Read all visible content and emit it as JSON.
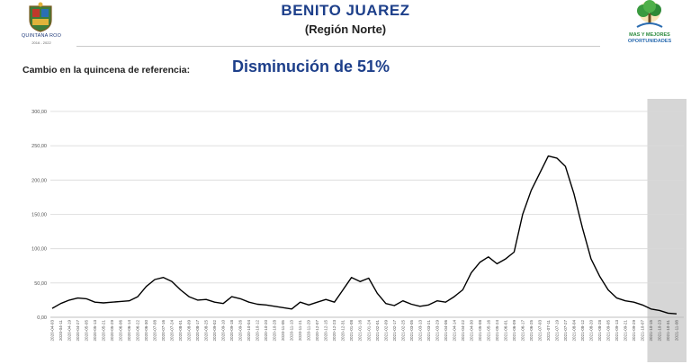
{
  "header": {
    "title": "BENITO JUAREZ",
    "subtitle": "(Región Norte)",
    "left_logo": {
      "name": "QUINTANA ROO",
      "years": "2016 - 2022"
    },
    "right_logo": {
      "line1": "MAS Y MEJORES",
      "line2": "OPORTUNIDADES"
    }
  },
  "change": {
    "label": "Cambio en la quincena de referencia:",
    "value": "Disminución de 51%"
  },
  "colors": {
    "title": "#1d3f8a",
    "line": "#000000",
    "grid": "#d9d9d9",
    "shade": "#c8c8c8"
  },
  "chart_data": {
    "type": "line",
    "title": "",
    "xlabel": "",
    "ylabel": "",
    "ylim": [
      0,
      300
    ],
    "yticks": [
      "0,00",
      "50,00",
      "100,00",
      "150,00",
      "200,00",
      "250,00",
      "300,00"
    ],
    "grid": true,
    "shaded_region": {
      "from": "2021-10-15",
      "to": "2021-11-08"
    },
    "x_tick_labels": [
      "2020-04-03",
      "2020-04-11",
      "2020-04-19",
      "2020-04-27",
      "2020-05-05",
      "2020-05-13",
      "2020-05-21",
      "2020-05-29",
      "2020-06-06",
      "2020-06-14",
      "2020-06-22",
      "2020-06-30",
      "2020-07-08",
      "2020-07-16",
      "2020-07-24",
      "2020-08-01",
      "2020-08-09",
      "2020-08-17",
      "2020-08-25",
      "2020-09-02",
      "2020-09-10",
      "2020-09-18",
      "2020-09-26",
      "2020-10-04",
      "2020-10-12",
      "2020-10-20",
      "2020-10-28",
      "2020-11-05",
      "2020-11-13",
      "2020-11-21",
      "2020-11-29",
      "2020-12-07",
      "2020-12-15",
      "2020-12-23",
      "2020-12-31",
      "2021-01-08",
      "2021-01-16",
      "2021-01-24",
      "2021-02-01",
      "2021-02-09",
      "2021-02-17",
      "2021-02-25",
      "2021-03-05",
      "2021-03-13",
      "2021-03-21",
      "2021-03-29",
      "2021-04-06",
      "2021-04-14",
      "2021-04-22",
      "2021-04-30",
      "2021-05-08",
      "2021-05-16",
      "2021-05-24",
      "2021-06-01",
      "2021-06-09",
      "2021-06-17",
      "2021-06-25",
      "2021-07-03",
      "2021-07-11",
      "2021-07-19",
      "2021-07-27",
      "2021-08-04",
      "2021-08-12",
      "2021-08-20",
      "2021-08-28",
      "2021-09-05",
      "2021-09-13",
      "2021-09-21",
      "2021-09-29",
      "2021-10-07",
      "2021-10-15",
      "2021-10-23",
      "2021-10-31",
      "2021-11-08"
    ],
    "series": [
      {
        "x": [
          "2020-04-03",
          "2020-04-11",
          "2020-04-19",
          "2020-04-27",
          "2020-05-05",
          "2020-05-13",
          "2020-05-21",
          "2020-05-29",
          "2020-06-06",
          "2020-06-14",
          "2020-06-22",
          "2020-06-30",
          "2020-07-08",
          "2020-07-16",
          "2020-07-24",
          "2020-08-01",
          "2020-08-09",
          "2020-08-17",
          "2020-08-25",
          "2020-09-02",
          "2020-09-10",
          "2020-09-18",
          "2020-09-26",
          "2020-10-04",
          "2020-10-12",
          "2020-10-20",
          "2020-10-28",
          "2020-11-05",
          "2020-11-13",
          "2020-11-21",
          "2020-11-29",
          "2020-12-07",
          "2020-12-15",
          "2020-12-23",
          "2020-12-31",
          "2021-01-08",
          "2021-01-16",
          "2021-01-24",
          "2021-02-01",
          "2021-02-09",
          "2021-02-17",
          "2021-02-25",
          "2021-03-05",
          "2021-03-13",
          "2021-03-21",
          "2021-03-29",
          "2021-04-06",
          "2021-04-14",
          "2021-04-22",
          "2021-04-30",
          "2021-05-08",
          "2021-05-16",
          "2021-05-24",
          "2021-06-01",
          "2021-06-09",
          "2021-06-17",
          "2021-06-25",
          "2021-07-03",
          "2021-07-11",
          "2021-07-19",
          "2021-07-27",
          "2021-08-04",
          "2021-08-12",
          "2021-08-20",
          "2021-08-28",
          "2021-09-05",
          "2021-09-13",
          "2021-09-21",
          "2021-09-29",
          "2021-10-07",
          "2021-10-15",
          "2021-10-23",
          "2021-10-31",
          "2021-11-08"
        ],
        "values": [
          13,
          20,
          25,
          28,
          27,
          22,
          21,
          22,
          23,
          24,
          30,
          45,
          55,
          58,
          52,
          40,
          30,
          25,
          26,
          22,
          20,
          30,
          27,
          22,
          19,
          18,
          16,
          14,
          12,
          22,
          18,
          22,
          26,
          22,
          40,
          58,
          52,
          57,
          35,
          20,
          17,
          24,
          19,
          16,
          18,
          24,
          22,
          30,
          40,
          65,
          80,
          88,
          78,
          85,
          95,
          150,
          185,
          210,
          235,
          232,
          220,
          180,
          130,
          85,
          60,
          40,
          28,
          24,
          22,
          18,
          12,
          10,
          6,
          5
        ]
      }
    ]
  }
}
